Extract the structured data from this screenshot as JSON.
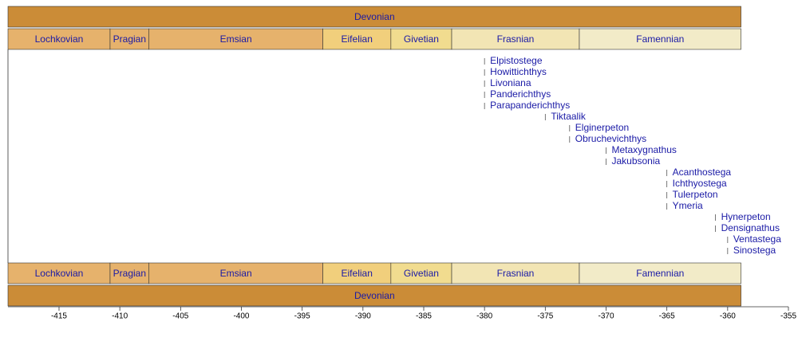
{
  "chart_data": {
    "type": "timeline",
    "periods": [
      {
        "name": "Devonian",
        "start": -419.2,
        "end": -358.9,
        "color": "#cb8c37"
      }
    ],
    "stages": [
      {
        "name": "Lochkovian",
        "start": -419.2,
        "end": -410.8,
        "color": "#e6b26c"
      },
      {
        "name": "Pragian",
        "start": -410.8,
        "end": -407.6,
        "color": "#e6b26c"
      },
      {
        "name": "Emsian",
        "start": -407.6,
        "end": -393.3,
        "color": "#e6b26c"
      },
      {
        "name": "Eifelian",
        "start": -393.3,
        "end": -387.7,
        "color": "#f1cf7c"
      },
      {
        "name": "Givetian",
        "start": -387.7,
        "end": -382.7,
        "color": "#f1dc8f"
      },
      {
        "name": "Frasnian",
        "start": -382.7,
        "end": -372.2,
        "color": "#f2e5b4"
      },
      {
        "name": "Famennian",
        "start": -372.2,
        "end": -358.9,
        "color": "#f2ebc8"
      }
    ],
    "taxa": {
      "names": [
        "Elpistostege",
        "Howittichthys",
        "Livoniana",
        "Panderichthys",
        "Parapanderichthys",
        "Tiktaalik",
        "Elginerpeton",
        "Obruchevichthys",
        "Metaxygnathus",
        "Jakubsonia",
        "Acanthostega",
        "Ichthyostega",
        "Tulerpeton",
        "Ymeria",
        "Hynerpeton",
        "Densignathus",
        "Ventastega",
        "Sinostega"
      ],
      "values": [
        -380,
        -380,
        -380,
        -380,
        -380,
        -375,
        -373,
        -373,
        -370,
        -370,
        -365,
        -365,
        -365,
        -365,
        -361,
        -361,
        -360,
        -360
      ],
      "color": "#1a1aa6"
    },
    "xlim": [
      -419.2,
      -355
    ],
    "xticks": [
      -415,
      -410,
      -405,
      -400,
      -395,
      -390,
      -385,
      -380,
      -375,
      -370,
      -365,
      -360,
      -355
    ]
  }
}
